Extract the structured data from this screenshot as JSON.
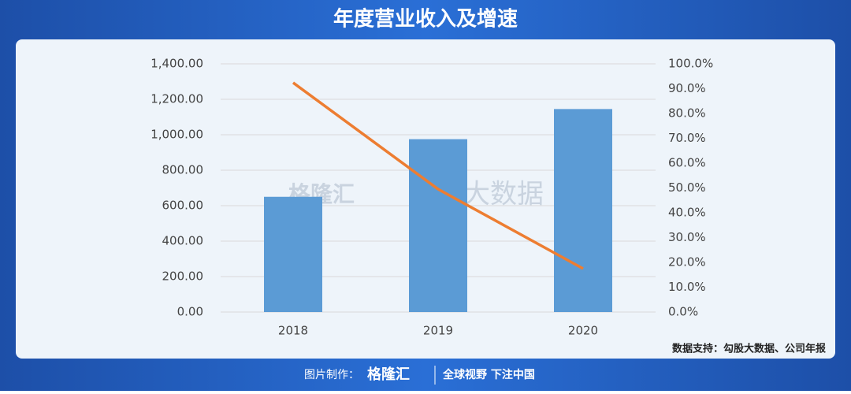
{
  "chart_data": {
    "type": "bar-line",
    "title": "年度营业收入及增速",
    "categories": [
      "2018",
      "2019",
      "2020"
    ],
    "series": [
      {
        "name": "营业收入",
        "type": "bar",
        "color": "#5b9bd5",
        "values": [
          650,
          975,
          1145
        ]
      },
      {
        "name": "增速",
        "type": "line",
        "axis": "y2",
        "color": "#ed7d31",
        "values": [
          92.4,
          49.5,
          17.5
        ]
      }
    ],
    "ylim": [
      0,
      1400
    ],
    "yticks": [
      {
        "value": 0,
        "label": "0.00"
      },
      {
        "value": 200,
        "label": "200.00"
      },
      {
        "value": 400,
        "label": "400.00"
      },
      {
        "value": 600,
        "label": "600.00"
      },
      {
        "value": 800,
        "label": "800.00"
      },
      {
        "value": 1000,
        "label": "1,000.00"
      },
      {
        "value": 1200,
        "label": "1,200.00"
      },
      {
        "value": 1400,
        "label": "1,400.00"
      }
    ],
    "y2lim": [
      0,
      100
    ],
    "y2ticks": [
      {
        "value": 0,
        "label": "0.0%"
      },
      {
        "value": 10,
        "label": "10.0%"
      },
      {
        "value": 20,
        "label": "20.0%"
      },
      {
        "value": 30,
        "label": "30.0%"
      },
      {
        "value": 40,
        "label": "40.0%"
      },
      {
        "value": 50,
        "label": "50.0%"
      },
      {
        "value": 60,
        "label": "60.0%"
      },
      {
        "value": 70,
        "label": "70.0%"
      },
      {
        "value": 80,
        "label": "80.0%"
      },
      {
        "value": 90,
        "label": "90.0%"
      },
      {
        "value": 100,
        "label": "100.0%"
      }
    ],
    "grid": true,
    "source": "数据支持：勾股大数据、公司年报"
  },
  "watermark": {
    "brand": "格隆汇",
    "text": "勾股大数据"
  },
  "footer": {
    "label": "图片制作：",
    "brand": "格隆汇",
    "slogan": "全球视野 下注中国"
  }
}
